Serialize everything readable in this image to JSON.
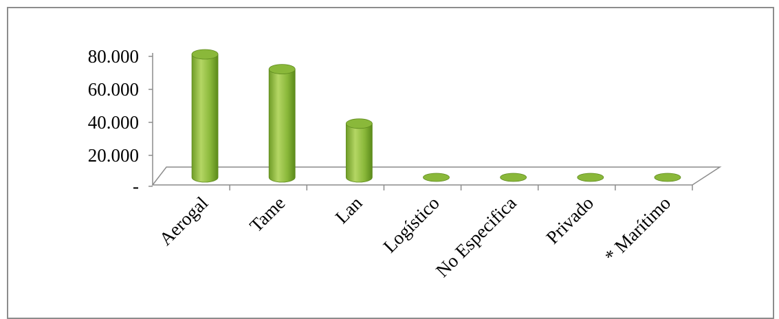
{
  "chart_data": {
    "type": "bar",
    "style": "3d-cylinder",
    "title": "",
    "xlabel": "",
    "ylabel": "",
    "categories": [
      "Aerogal",
      "Tame",
      "Lan",
      "Logístico",
      "No Especifica",
      "Privado",
      "* Marítimo"
    ],
    "values": [
      80000,
      71000,
      38000,
      0,
      0,
      0,
      0
    ],
    "ylim": [
      0,
      80000
    ],
    "yticks": [
      {
        "value": 80000,
        "label": "80.000"
      },
      {
        "value": 60000,
        "label": "60.000"
      },
      {
        "value": 40000,
        "label": "40.000"
      },
      {
        "value": 20000,
        "label": "20.000"
      },
      {
        "value": 0,
        "label": "-"
      }
    ],
    "grid": false,
    "legend": "none",
    "colors": {
      "bar": "#8ab83a",
      "bar_dark": "#5e8a1e",
      "bar_light": "#b9d86a",
      "axis": "#8c8c8c"
    }
  }
}
